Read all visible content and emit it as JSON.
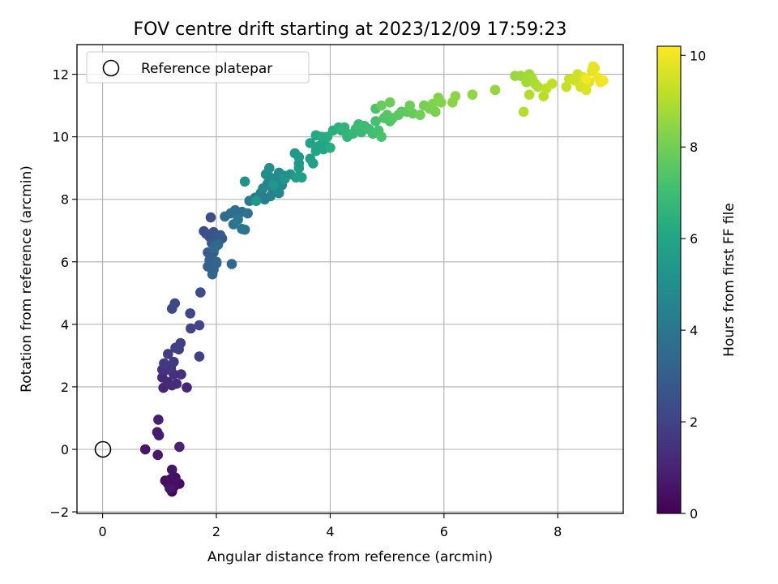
{
  "chart_data": {
    "type": "scatter",
    "title": "FOV centre drift starting at 2023/12/09 17:59:23",
    "xlabel": "Angular distance from reference (arcmin)",
    "ylabel": "Rotation from reference (arcmin)",
    "xlim": [
      -0.45,
      9.15
    ],
    "ylim": [
      -2.05,
      12.95
    ],
    "xticks": [
      "0",
      "2",
      "4",
      "6",
      "8"
    ],
    "yticks": [
      "−2",
      "0",
      "2",
      "4",
      "6",
      "8",
      "10",
      "12"
    ],
    "grid": true,
    "legend": {
      "placement": "top-left",
      "entries": [
        "Reference platepar"
      ]
    },
    "colorbar": {
      "label": "Hours from first FF file",
      "range": [
        0,
        10.2
      ],
      "ticks": [
        "0",
        "2",
        "4",
        "6",
        "8",
        "10"
      ],
      "colormap": "viridis"
    },
    "reference_point": {
      "x": 0,
      "y": 0
    },
    "series": [
      {
        "points": [
          [
            1.22,
            -1.35
          ],
          [
            1.15,
            -1.1
          ],
          [
            1.3,
            -1.05
          ],
          [
            1.2,
            -0.95
          ],
          [
            1.35,
            -1.1
          ],
          [
            1.25,
            -1.2
          ],
          [
            1.1,
            -1.0
          ],
          [
            1.28,
            -0.9
          ],
          [
            1.22,
            -0.65
          ],
          [
            1.18,
            -1.25
          ],
          [
            0.75,
            0.0
          ],
          [
            0.97,
            -0.18
          ],
          [
            0.96,
            0.55
          ],
          [
            0.99,
            0.45
          ],
          [
            0.98,
            0.95
          ],
          [
            1.35,
            0.08
          ],
          [
            1.07,
            1.97
          ],
          [
            1.48,
            1.98
          ],
          [
            1.05,
            2.3
          ],
          [
            1.15,
            2.15
          ],
          [
            1.22,
            2.05
          ],
          [
            1.3,
            2.1
          ],
          [
            1.25,
            2.4
          ],
          [
            1.38,
            2.4
          ],
          [
            1.05,
            2.55
          ],
          [
            1.12,
            2.55
          ],
          [
            1.2,
            2.6
          ],
          [
            1.25,
            2.8
          ],
          [
            1.08,
            2.75
          ],
          [
            1.15,
            3.05
          ],
          [
            1.34,
            3.2
          ],
          [
            1.37,
            3.4
          ],
          [
            1.28,
            3.25
          ],
          [
            1.7,
            2.97
          ],
          [
            1.55,
            3.87
          ],
          [
            1.7,
            3.97
          ],
          [
            1.54,
            4.35
          ],
          [
            1.27,
            4.67
          ],
          [
            1.22,
            4.5
          ],
          [
            1.72,
            5.02
          ],
          [
            1.78,
            6.98
          ],
          [
            1.9,
            7.42
          ],
          [
            1.82,
            6.9
          ],
          [
            1.88,
            6.8
          ],
          [
            1.95,
            6.95
          ],
          [
            2.05,
            6.7
          ],
          [
            2.0,
            6.8
          ],
          [
            2.1,
            6.75
          ],
          [
            2.07,
            6.85
          ],
          [
            1.92,
            6.6
          ],
          [
            1.85,
            6.3
          ],
          [
            1.95,
            6.3
          ],
          [
            1.88,
            6.05
          ],
          [
            1.85,
            5.85
          ],
          [
            1.95,
            5.75
          ],
          [
            2.0,
            5.95
          ],
          [
            1.93,
            5.6
          ],
          [
            2.0,
            6.0
          ],
          [
            2.27,
            5.93
          ],
          [
            2.03,
            6.55
          ],
          [
            1.97,
            6.45
          ],
          [
            2.15,
            7.45
          ],
          [
            2.25,
            7.55
          ],
          [
            2.33,
            7.65
          ],
          [
            2.45,
            7.6
          ],
          [
            2.55,
            7.55
          ],
          [
            2.3,
            7.2
          ],
          [
            2.45,
            7.05
          ],
          [
            2.5,
            7.03
          ],
          [
            2.38,
            7.35
          ],
          [
            2.58,
            7.95
          ],
          [
            2.68,
            8.05
          ],
          [
            2.75,
            8.1
          ],
          [
            2.85,
            8.0
          ],
          [
            2.78,
            8.2
          ],
          [
            2.95,
            8.1
          ],
          [
            3.0,
            8.3
          ],
          [
            3.05,
            8.4
          ],
          [
            2.9,
            8.5
          ],
          [
            2.82,
            8.35
          ],
          [
            3.1,
            8.2
          ],
          [
            3.15,
            8.45
          ],
          [
            3.05,
            8.6
          ],
          [
            2.95,
            8.7
          ],
          [
            3.1,
            8.85
          ],
          [
            2.87,
            8.8
          ],
          [
            2.93,
            9.0
          ],
          [
            3.2,
            8.75
          ],
          [
            3.3,
            8.8
          ],
          [
            2.5,
            8.57
          ],
          [
            3.2,
            8.65
          ],
          [
            3.0,
            8.45
          ],
          [
            2.7,
            7.95
          ],
          [
            3.38,
            9.47
          ],
          [
            3.45,
            9.35
          ],
          [
            3.45,
            9.15
          ],
          [
            3.45,
            9.0
          ],
          [
            3.4,
            8.7
          ],
          [
            3.5,
            8.7
          ],
          [
            3.65,
            9.3
          ],
          [
            3.7,
            9.15
          ],
          [
            3.65,
            9.8
          ],
          [
            3.75,
            9.55
          ],
          [
            3.8,
            9.7
          ],
          [
            3.88,
            9.6
          ],
          [
            3.9,
            9.8
          ],
          [
            3.75,
            10.05
          ],
          [
            3.85,
            10.0
          ],
          [
            3.95,
            10.0
          ],
          [
            4.0,
            9.65
          ],
          [
            4.05,
            10.2
          ],
          [
            4.15,
            10.3
          ],
          [
            4.2,
            10.2
          ],
          [
            4.3,
            10.1
          ],
          [
            4.25,
            10.3
          ],
          [
            4.3,
            10.0
          ],
          [
            4.4,
            10.1
          ],
          [
            4.45,
            10.25
          ],
          [
            4.55,
            10.15
          ],
          [
            4.5,
            10.4
          ],
          [
            4.6,
            10.35
          ],
          [
            4.68,
            10.25
          ],
          [
            4.75,
            10.1
          ],
          [
            4.8,
            10.5
          ],
          [
            4.85,
            10.2
          ],
          [
            4.9,
            10.0
          ],
          [
            4.8,
            10.9
          ],
          [
            4.95,
            10.6
          ],
          [
            5.05,
            10.5
          ],
          [
            5.0,
            10.7
          ],
          [
            5.1,
            10.6
          ],
          [
            5.2,
            10.7
          ],
          [
            5.25,
            10.8
          ],
          [
            5.35,
            10.8
          ],
          [
            5.45,
            10.75
          ],
          [
            4.9,
            11.0
          ],
          [
            5.05,
            11.1
          ],
          [
            5.4,
            11.0
          ],
          [
            5.58,
            10.7
          ],
          [
            5.65,
            11.0
          ],
          [
            5.75,
            10.9
          ],
          [
            5.85,
            10.8
          ],
          [
            5.8,
            11.05
          ],
          [
            5.9,
            11.25
          ],
          [
            5.95,
            11.1
          ],
          [
            6.15,
            11.1
          ],
          [
            6.2,
            11.3
          ],
          [
            6.5,
            11.35
          ],
          [
            6.9,
            11.5
          ],
          [
            7.25,
            11.95
          ],
          [
            7.35,
            11.95
          ],
          [
            7.5,
            12.0
          ],
          [
            7.45,
            11.75
          ],
          [
            7.55,
            11.85
          ],
          [
            7.6,
            11.7
          ],
          [
            7.65,
            11.6
          ],
          [
            7.5,
            11.35
          ],
          [
            7.4,
            10.8
          ],
          [
            7.75,
            11.3
          ],
          [
            7.8,
            11.55
          ],
          [
            7.9,
            11.7
          ],
          [
            8.15,
            11.6
          ],
          [
            8.2,
            11.85
          ],
          [
            8.3,
            11.8
          ],
          [
            8.35,
            12.0
          ],
          [
            8.4,
            11.6
          ],
          [
            8.45,
            11.9
          ],
          [
            8.5,
            11.5
          ],
          [
            8.55,
            11.75
          ],
          [
            8.6,
            12.1
          ],
          [
            8.62,
            12.25
          ],
          [
            8.65,
            12.2
          ],
          [
            8.7,
            11.9
          ],
          [
            8.75,
            11.75
          ],
          [
            8.8,
            11.8
          ],
          [
            8.5,
            11.85
          ]
        ]
      }
    ]
  }
}
